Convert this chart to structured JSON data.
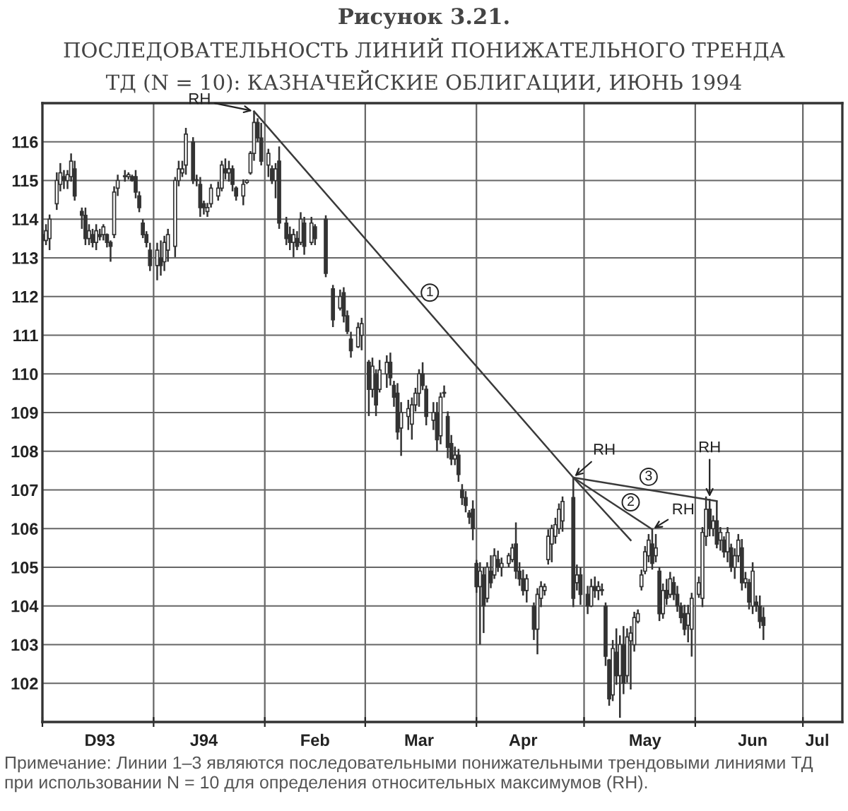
{
  "chart_data": {
    "type": "candlestick",
    "title": "Рисунок 3.21.",
    "subtitle": "ПОСЛЕДОВАТЕЛЬНОСТЬ ЛИНИЙ ПОНИЖАТЕЛЬНОГО ТРЕНДА\nТД (N = 10): КАЗНАЧЕЙСКИЕ ОБЛИГАЦИИ, ИЮНЬ 1994",
    "color": "#333333",
    "x": [
      "1993-12-01",
      "1993-12-02",
      "1993-12-03",
      "1993-12-05",
      "1993-12-06",
      "1993-12-07",
      "1993-12-08",
      "1993-12-09",
      "1993-12-10",
      "1993-12-12",
      "1993-12-13",
      "1993-12-14",
      "1993-12-15",
      "1993-12-16",
      "1993-12-17",
      "1993-12-18",
      "1993-12-19",
      "1993-12-20",
      "1993-12-21",
      "1993-12-22",
      "1993-12-24",
      "1993-12-25",
      "1993-12-26",
      "1993-12-27",
      "1993-12-28",
      "1993-12-29",
      "1993-12-30",
      "1993-12-31",
      "1994-01-02",
      "1994-01-03",
      "1994-01-04",
      "1994-01-05",
      "1994-01-07",
      "1994-01-08",
      "1994-01-09",
      "1994-01-10",
      "1994-01-12",
      "1994-01-13",
      "1994-01-14",
      "1994-01-15",
      "1994-01-16",
      "1994-01-17",
      "1994-01-19",
      "1994-01-20",
      "1994-01-21",
      "1994-01-22",
      "1994-01-23",
      "1994-01-24",
      "1994-01-26",
      "1994-01-27",
      "1994-01-28",
      "1994-01-29",
      "1994-01-30",
      "1994-01-31",
      "1994-02-02",
      "1994-02-03",
      "1994-02-04",
      "1994-02-05",
      "1994-02-07",
      "1994-02-08",
      "1994-02-09",
      "1994-02-10",
      "1994-02-11",
      "1994-02-12",
      "1994-02-14",
      "1994-02-15",
      "1994-02-18",
      "1994-02-20",
      "1994-02-22",
      "1994-02-23",
      "1994-02-24",
      "1994-02-25",
      "1994-02-27",
      "1994-02-28",
      "1994-03-02",
      "1994-03-03",
      "1994-03-04",
      "1994-03-05",
      "1994-03-07",
      "1994-03-08",
      "1994-03-09",
      "1994-03-10",
      "1994-03-11",
      "1994-03-13",
      "1994-03-14",
      "1994-03-15",
      "1994-03-16",
      "1994-03-17",
      "1994-03-18",
      "1994-03-20",
      "1994-03-21",
      "1994-03-22",
      "1994-03-23",
      "1994-03-24",
      "1994-03-25",
      "1994-03-26",
      "1994-03-27",
      "1994-03-28",
      "1994-03-29",
      "1994-03-30",
      "1994-03-31",
      "1994-04-01",
      "1994-04-02",
      "1994-04-03",
      "1994-04-04",
      "1994-04-05",
      "1994-04-06",
      "1994-04-07",
      "1994-04-08",
      "1994-04-10",
      "1994-04-11",
      "1994-04-12",
      "1994-04-13",
      "1994-04-14",
      "1994-04-15",
      "1994-04-17",
      "1994-04-18",
      "1994-04-19",
      "1994-04-20",
      "1994-04-21",
      "1994-04-22",
      "1994-04-23",
      "1994-04-24",
      "1994-04-25",
      "1994-04-28",
      "1994-04-29",
      "1994-04-30",
      "1994-05-02",
      "1994-05-03",
      "1994-05-04",
      "1994-05-05",
      "1994-05-06",
      "1994-05-07",
      "1994-05-08",
      "1994-05-09",
      "1994-05-10",
      "1994-05-11",
      "1994-05-12",
      "1994-05-13",
      "1994-05-14",
      "1994-05-15",
      "1994-05-16",
      "1994-05-17",
      "1994-05-18",
      "1994-05-19",
      "1994-05-20",
      "1994-05-21",
      "1994-05-22",
      "1994-05-23",
      "1994-05-24",
      "1994-05-25",
      "1994-05-26",
      "1994-05-27",
      "1994-05-28",
      "1994-05-29",
      "1994-05-30",
      "1994-05-31",
      "1994-06-02",
      "1994-06-03",
      "1994-06-04",
      "1994-06-05",
      "1994-06-06",
      "1994-06-07",
      "1994-06-08",
      "1994-06-09",
      "1994-06-10",
      "1994-06-11",
      "1994-06-12",
      "1994-06-13",
      "1994-06-14",
      "1994-06-15",
      "1994-06-16",
      "1994-06-17",
      "1994-06-18",
      "1994-06-19",
      "1994-06-20"
    ],
    "ohlc": [
      [
        113.6,
        113.75,
        113.27,
        113.45
      ],
      [
        113.45,
        113.87,
        113.33,
        113.7
      ],
      [
        113.5,
        114.12,
        113.2,
        114.0
      ],
      [
        114.4,
        115.21,
        114.24,
        115.0
      ],
      [
        114.9,
        115.45,
        114.72,
        115.2
      ],
      [
        115.1,
        115.27,
        114.78,
        115.0
      ],
      [
        115.0,
        115.27,
        114.78,
        115.15
      ],
      [
        115.1,
        115.7,
        114.97,
        115.5
      ],
      [
        115.3,
        115.51,
        114.48,
        114.6
      ],
      [
        114.2,
        114.3,
        113.75,
        114.1
      ],
      [
        114.1,
        114.3,
        113.33,
        113.5
      ],
      [
        113.5,
        113.87,
        113.33,
        113.7
      ],
      [
        113.6,
        113.75,
        113.27,
        113.4
      ],
      [
        113.4,
        113.87,
        113.2,
        113.7
      ],
      [
        113.6,
        113.75,
        113.45,
        113.55
      ],
      [
        113.6,
        113.87,
        113.45,
        113.8
      ],
      [
        113.6,
        113.63,
        113.27,
        113.4
      ],
      [
        113.4,
        113.45,
        112.9,
        113.3
      ],
      [
        113.6,
        114.85,
        113.51,
        114.7
      ],
      [
        114.8,
        115.15,
        114.6,
        115.0
      ],
      [
        115.1,
        115.27,
        114.97,
        115.1
      ],
      [
        115.1,
        115.21,
        115.03,
        115.15
      ],
      [
        115.1,
        115.15,
        114.97,
        115.0
      ],
      [
        115.1,
        115.27,
        114.54,
        114.7
      ],
      [
        114.6,
        114.72,
        114.18,
        114.3
      ],
      [
        113.9,
        114.0,
        113.51,
        113.6
      ],
      [
        113.6,
        113.69,
        113.27,
        113.4
      ],
      [
        113.2,
        113.39,
        112.66,
        112.8
      ],
      [
        112.8,
        113.39,
        112.42,
        113.2
      ],
      [
        113.0,
        113.45,
        112.54,
        112.8
      ],
      [
        112.9,
        113.57,
        112.66,
        113.4
      ],
      [
        113.2,
        113.75,
        112.9,
        113.6
      ],
      [
        113.3,
        115.09,
        113.02,
        115.0
      ],
      [
        115.0,
        115.51,
        114.85,
        115.3
      ],
      [
        115.2,
        115.51,
        115.09,
        115.3
      ],
      [
        115.4,
        116.36,
        115.15,
        116.2
      ],
      [
        116.0,
        116.12,
        114.91,
        115.0
      ],
      [
        115.0,
        115.15,
        114.85,
        115.0
      ],
      [
        114.9,
        115.09,
        114.06,
        114.3
      ],
      [
        114.4,
        114.48,
        114.12,
        114.3
      ],
      [
        114.2,
        114.42,
        114.06,
        114.3
      ],
      [
        114.4,
        114.91,
        114.3,
        114.8
      ],
      [
        114.6,
        114.97,
        114.48,
        114.8
      ],
      [
        114.8,
        115.51,
        114.72,
        115.4
      ],
      [
        115.3,
        115.57,
        115.03,
        115.2
      ],
      [
        115.2,
        115.51,
        114.97,
        115.3
      ],
      [
        115.3,
        115.39,
        114.72,
        114.9
      ],
      [
        114.8,
        114.85,
        114.48,
        114.6
      ],
      [
        114.6,
        115.03,
        114.36,
        114.9
      ],
      [
        114.95,
        115.03,
        114.91,
        115.0
      ],
      [
        115.2,
        115.76,
        115.15,
        115.7
      ],
      [
        115.7,
        116.79,
        115.51,
        116.5
      ],
      [
        116.5,
        116.61,
        116.0,
        116.1
      ],
      [
        116.1,
        116.49,
        115.39,
        115.5
      ],
      [
        115.4,
        115.82,
        115.09,
        115.7
      ],
      [
        115.3,
        115.39,
        114.91,
        115.0
      ],
      [
        115.0,
        115.45,
        114.54,
        115.3
      ],
      [
        115.5,
        115.88,
        113.75,
        113.9
      ],
      [
        113.9,
        114.06,
        113.33,
        113.5
      ],
      [
        113.6,
        113.81,
        113.2,
        113.4
      ],
      [
        113.4,
        113.75,
        113.02,
        113.6
      ],
      [
        113.5,
        113.69,
        113.2,
        113.3
      ],
      [
        113.4,
        114.18,
        113.33,
        114.0
      ],
      [
        113.9,
        114.06,
        113.08,
        113.3
      ],
      [
        113.4,
        114.06,
        113.33,
        113.9
      ],
      [
        113.8,
        113.87,
        113.33,
        113.5
      ],
      [
        114.0,
        114.1,
        112.5,
        112.6
      ],
      [
        112.2,
        112.3,
        111.21,
        111.4
      ],
      [
        111.7,
        112.18,
        111.64,
        112.0
      ],
      [
        112.1,
        112.24,
        111.33,
        111.5
      ],
      [
        111.5,
        111.64,
        111.03,
        111.1
      ],
      [
        110.9,
        111.09,
        110.42,
        110.6
      ],
      [
        110.7,
        111.33,
        110.67,
        111.2
      ],
      [
        111.0,
        111.45,
        110.61,
        111.3
      ],
      [
        110.3,
        110.36,
        108.91,
        109.6
      ],
      [
        109.6,
        110.42,
        109.39,
        110.2
      ],
      [
        110.0,
        110.12,
        108.91,
        109.2
      ],
      [
        109.6,
        110.36,
        109.52,
        110.1
      ],
      [
        110.0,
        110.48,
        109.64,
        110.3
      ],
      [
        110.3,
        110.55,
        109.7,
        109.9
      ],
      [
        109.7,
        109.82,
        109.15,
        109.4
      ],
      [
        109.5,
        109.76,
        108.3,
        108.5
      ],
      [
        108.6,
        109.27,
        107.88,
        109.0
      ],
      [
        108.9,
        109.33,
        108.55,
        109.1
      ],
      [
        108.7,
        109.39,
        108.3,
        109.2
      ],
      [
        109.2,
        109.64,
        109.03,
        109.5
      ],
      [
        109.5,
        110.12,
        109.15,
        110.0
      ],
      [
        110.0,
        110.3,
        109.58,
        109.7
      ],
      [
        109.6,
        109.7,
        108.67,
        108.9
      ],
      [
        108.8,
        109.27,
        108.55,
        109.0
      ],
      [
        109.0,
        109.27,
        108.0,
        108.3
      ],
      [
        108.4,
        109.52,
        108.18,
        109.4
      ],
      [
        109.5,
        109.7,
        109.39,
        109.5
      ],
      [
        108.9,
        109.03,
        107.82,
        108.1
      ],
      [
        108.2,
        108.42,
        107.64,
        107.8
      ],
      [
        107.8,
        108.12,
        107.64,
        107.9
      ],
      [
        107.9,
        108.06,
        107.21,
        107.4
      ],
      [
        107.0,
        107.15,
        106.61,
        106.8
      ],
      [
        106.8,
        106.97,
        106.42,
        106.6
      ],
      [
        106.4,
        106.48,
        106.12,
        106.3
      ],
      [
        106.5,
        106.73,
        105.7,
        106.0
      ],
      [
        105.1,
        105.19,
        104.34,
        104.5
      ],
      [
        104.5,
        105.13,
        103.0,
        104.9
      ],
      [
        104.8,
        105.0,
        103.3,
        104.0
      ],
      [
        104.2,
        105.13,
        104.09,
        105.0
      ],
      [
        104.9,
        105.31,
        104.46,
        104.6
      ],
      [
        104.8,
        105.49,
        104.7,
        105.3
      ],
      [
        105.2,
        105.43,
        104.88,
        105.0
      ],
      [
        105.0,
        105.25,
        104.76,
        105.1
      ],
      [
        105.1,
        105.37,
        105.0,
        105.3
      ],
      [
        105.2,
        105.61,
        105.13,
        105.5
      ],
      [
        105.6,
        106.16,
        104.7,
        104.9
      ],
      [
        104.9,
        105.13,
        104.52,
        104.7
      ],
      [
        104.7,
        104.94,
        104.27,
        104.4
      ],
      [
        104.4,
        104.82,
        104.09,
        104.7
      ],
      [
        104.0,
        104.09,
        103.12,
        103.4
      ],
      [
        103.4,
        104.46,
        102.75,
        104.3
      ],
      [
        104.2,
        104.64,
        103.97,
        104.5
      ],
      [
        104.4,
        104.58,
        104.27,
        104.5
      ],
      [
        105.2,
        105.98,
        105.07,
        105.8
      ],
      [
        105.6,
        106.1,
        105.13,
        106.0
      ],
      [
        105.8,
        106.28,
        105.61,
        106.1
      ],
      [
        106.0,
        106.65,
        105.86,
        106.5
      ],
      [
        106.2,
        106.83,
        105.92,
        106.7
      ],
      [
        106.8,
        107.32,
        103.97,
        104.2
      ],
      [
        104.6,
        105.07,
        104.4,
        104.8
      ],
      [
        104.8,
        105.0,
        104.03,
        104.3
      ],
      [
        104.3,
        104.52,
        103.79,
        104.0
      ],
      [
        104.0,
        104.7,
        103.97,
        104.5
      ],
      [
        104.5,
        104.76,
        104.21,
        104.4
      ],
      [
        104.4,
        104.64,
        104.15,
        104.5
      ],
      [
        104.4,
        104.58,
        104.27,
        104.4
      ],
      [
        104.0,
        104.09,
        102.45,
        102.7
      ],
      [
        102.6,
        102.63,
        101.42,
        101.6
      ],
      [
        101.7,
        103.12,
        101.54,
        102.9
      ],
      [
        102.8,
        103.42,
        101.96,
        102.2
      ],
      [
        102.2,
        103.24,
        101.11,
        103.0
      ],
      [
        103.0,
        103.48,
        101.72,
        102.0
      ],
      [
        102.2,
        103.42,
        102.02,
        103.2
      ],
      [
        103.1,
        103.48,
        101.84,
        103.3
      ],
      [
        103.0,
        103.85,
        102.82,
        103.7
      ],
      [
        103.6,
        103.91,
        103.55,
        103.8
      ],
      [
        104.5,
        104.94,
        104.4,
        104.8
      ],
      [
        104.9,
        105.55,
        104.82,
        105.4
      ],
      [
        105.3,
        105.86,
        105.13,
        105.7
      ],
      [
        105.6,
        105.98,
        104.94,
        105.1
      ],
      [
        105.3,
        105.86,
        105.13,
        105.5
      ],
      [
        104.9,
        105.0,
        103.61,
        103.8
      ],
      [
        103.8,
        104.58,
        103.67,
        104.4
      ],
      [
        104.4,
        104.7,
        104.03,
        104.2
      ],
      [
        104.3,
        104.88,
        104.21,
        104.7
      ],
      [
        104.6,
        104.76,
        104.15,
        104.3
      ],
      [
        104.3,
        104.52,
        103.85,
        104.0
      ],
      [
        104.0,
        104.09,
        103.55,
        103.7
      ],
      [
        103.8,
        104.03,
        103.24,
        103.4
      ],
      [
        103.5,
        104.03,
        103.06,
        103.8
      ],
      [
        103.4,
        104.34,
        102.69,
        104.2
      ],
      [
        104.3,
        104.76,
        104.21,
        104.6
      ],
      [
        104.2,
        106.04,
        103.97,
        105.9
      ],
      [
        105.8,
        106.83,
        105.55,
        106.5
      ],
      [
        106.5,
        106.77,
        105.8,
        106.0
      ],
      [
        106.0,
        106.34,
        105.8,
        106.2
      ],
      [
        106.2,
        106.71,
        105.49,
        105.6
      ],
      [
        105.7,
        106.04,
        105.43,
        105.9
      ],
      [
        105.7,
        105.8,
        105.25,
        105.4
      ],
      [
        105.4,
        106.04,
        105.13,
        105.9
      ],
      [
        105.5,
        105.61,
        104.88,
        105.0
      ],
      [
        105.0,
        105.49,
        104.7,
        105.3
      ],
      [
        105.3,
        105.86,
        105.13,
        105.7
      ],
      [
        105.5,
        105.73,
        104.4,
        104.6
      ],
      [
        104.6,
        104.88,
        104.46,
        104.7
      ],
      [
        104.6,
        104.7,
        103.91,
        104.1
      ],
      [
        104.0,
        105.13,
        103.79,
        104.9
      ],
      [
        104.1,
        104.27,
        103.85,
        104.0
      ],
      [
        104.0,
        104.27,
        103.42,
        103.6
      ],
      [
        103.7,
        103.97,
        103.12,
        103.5
      ]
    ],
    "series": [
      {
        "type": "line",
        "color": "#3a3a3a",
        "x": [
          "1994-01-29",
          "1994-04-28",
          "1994-05-14"
        ],
        "values": [
          116.79,
          107.32,
          105.7
        ]
      },
      {
        "type": "line",
        "color": "#3a3a3a",
        "x": [
          "1994-04-28",
          "1994-05-20"
        ],
        "values": [
          107.32,
          105.98
        ]
      },
      {
        "type": "line",
        "color": "#3a3a3a",
        "x": [
          "1994-04-28",
          "1994-06-07"
        ],
        "values": [
          107.32,
          106.71
        ]
      }
    ],
    "xlim": [
      "1993-12-01",
      "1994-07-12"
    ],
    "ylim": [
      101,
      117
    ],
    "xticks": [
      {
        "value": "1993-12-01",
        "label": null
      },
      {
        "value": "1993-12-17",
        "label": "D93"
      },
      {
        "value": "1994-01-01",
        "label": null
      },
      {
        "value": "1994-01-15",
        "label": "J94"
      },
      {
        "value": "1994-02-01",
        "label": null
      },
      {
        "value": "1994-02-15",
        "label": "Feb"
      },
      {
        "value": "1994-03-01",
        "label": null
      },
      {
        "value": "1994-03-16",
        "label": "Mar"
      },
      {
        "value": "1994-04-01",
        "label": null
      },
      {
        "value": "1994-04-14",
        "label": "Apr"
      },
      {
        "value": "1994-05-01",
        "label": null
      },
      {
        "value": "1994-05-18",
        "label": "May"
      },
      {
        "value": "1994-06-01",
        "label": null
      },
      {
        "value": "1994-06-17",
        "label": "Jun"
      },
      {
        "value": "1994-07-01",
        "label": null
      },
      {
        "value": "1994-07-05",
        "label": "Jul"
      }
    ],
    "yticks": [
      102,
      103,
      104,
      105,
      106,
      107,
      108,
      109,
      110,
      111,
      112,
      113,
      114,
      115,
      116
    ],
    "grid": true,
    "annotations": [
      {
        "text": "RH",
        "x": "1994-01-29",
        "y": 116.79
      },
      {
        "text": "RH",
        "x": "1994-04-28",
        "y": 107.32
      },
      {
        "text": "RH",
        "x": "1994-05-20",
        "y": 105.98
      },
      {
        "text": "RH",
        "x": "1994-06-05",
        "y": 106.77
      },
      {
        "text": "1",
        "x": "1994-03-19",
        "y": 112.1
      },
      {
        "text": "2",
        "x": "1994-05-14",
        "y": 106.68
      },
      {
        "text": "3",
        "x": "1994-05-19",
        "y": 107.34
      },
      "Примечание: Линии 1–3 являются последовательными понижательными трендовыми линиями ТД при использовании N = 10 для определения относительных максимумов (RH)."
    ]
  }
}
